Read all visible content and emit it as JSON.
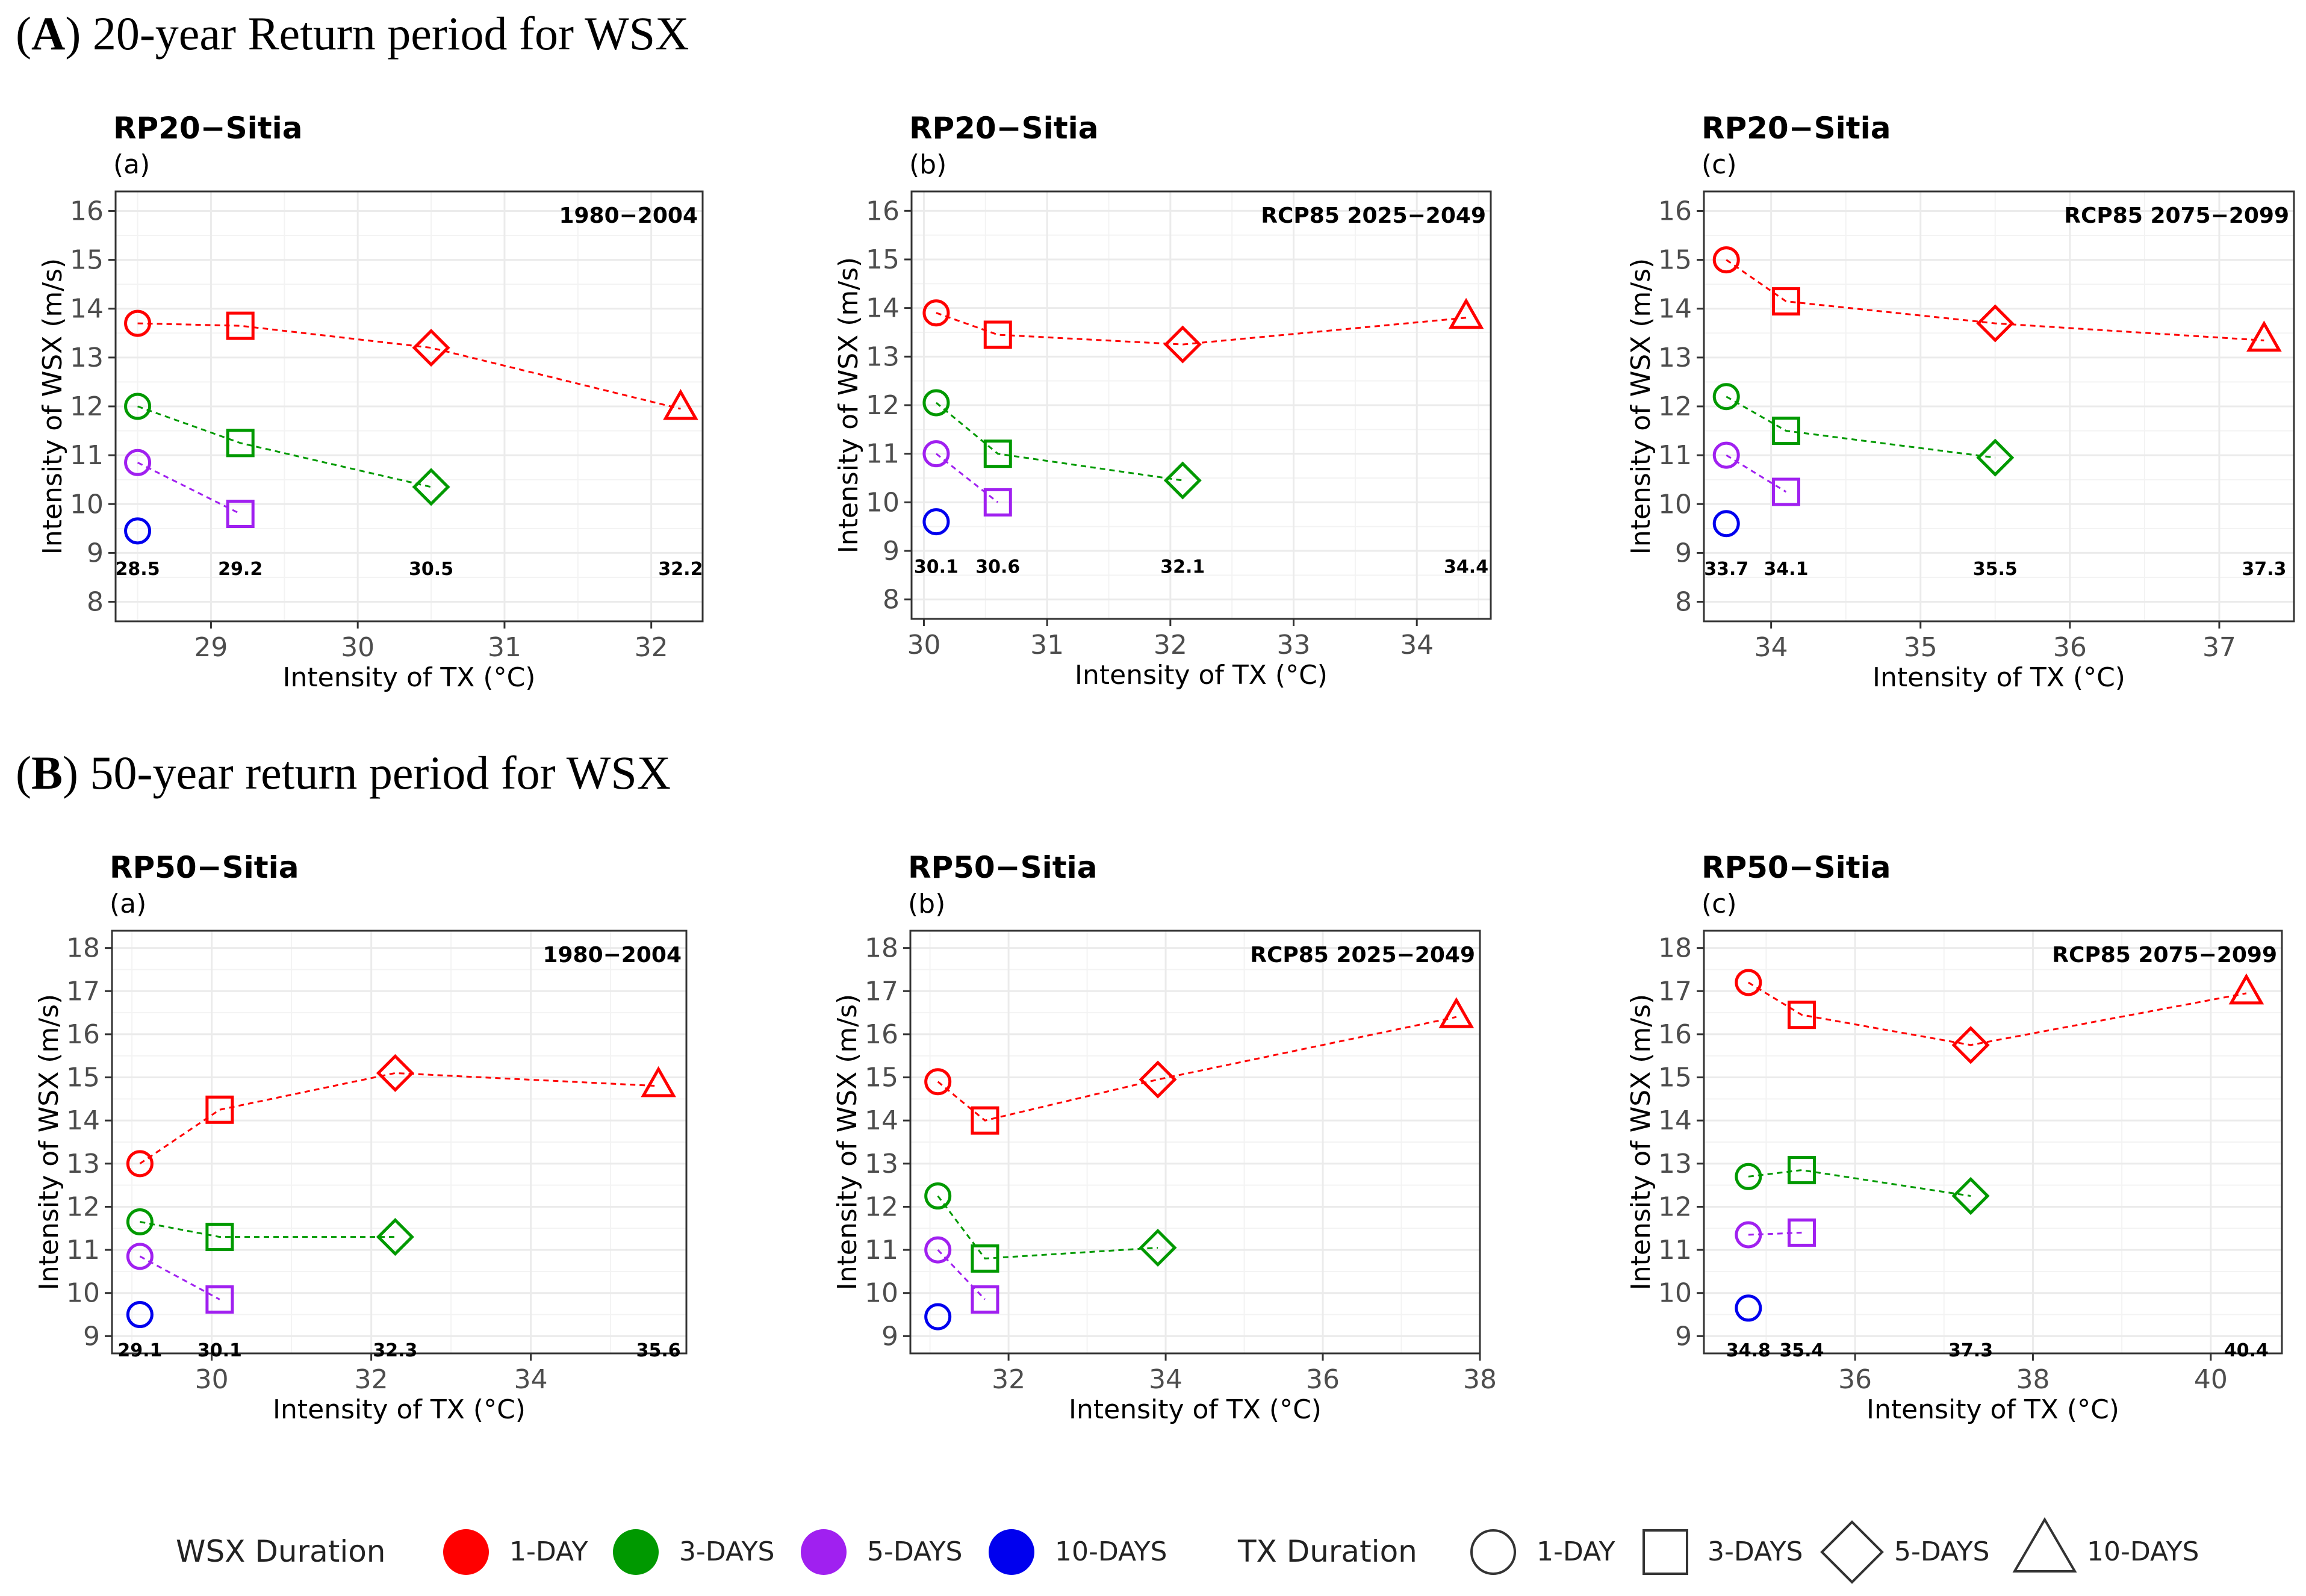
{
  "figure": {
    "section_A": {
      "letter": "A",
      "title": " 20-year Return period for WSX"
    },
    "section_B": {
      "letter": "B",
      "title": " 50-year return period for WSX"
    },
    "colors": {
      "1-DAY": "#ff0000",
      "3-DAYS": "#009900",
      "5-DAYS": "#a020f0",
      "10-DAYS": "#0000ee",
      "grid": "#ebebeb",
      "frame": "#333333"
    },
    "legend": {
      "wsx_title": "WSX Duration",
      "wsx_items": [
        {
          "label": "1-DAY",
          "color": "#ff0000"
        },
        {
          "label": "3-DAYS",
          "color": "#009900"
        },
        {
          "label": "5-DAYS",
          "color": "#a020f0"
        },
        {
          "label": "10-DAYS",
          "color": "#0000ee"
        }
      ],
      "tx_title": "TX Duration",
      "tx_items": [
        {
          "label": "1-DAY",
          "shape": "circle"
        },
        {
          "label": "3-DAYS",
          "shape": "square"
        },
        {
          "label": "5-DAYS",
          "shape": "diamond"
        },
        {
          "label": "10-DAYS",
          "shape": "triangle"
        }
      ]
    }
  },
  "chart_data": [
    {
      "type": "scatter",
      "title": "RP20−Sitia",
      "subtitle": "(a)",
      "period": "1980−2004",
      "xlabel": "Intensity of TX (°C)",
      "ylabel": "Intensity of WSX (m/s)",
      "xlim": [
        28.35,
        32.35
      ],
      "ylim": [
        7.6,
        16.4
      ],
      "xticks": [
        29,
        30,
        31,
        32
      ],
      "yticks": [
        8,
        9,
        10,
        11,
        12,
        13,
        14,
        15,
        16
      ],
      "tx_values": [
        28.5,
        29.2,
        30.5,
        32.2
      ],
      "tx_label_y": 8.7,
      "tx_labels": [
        "28.5",
        "29.2",
        "30.5",
        "32.2"
      ],
      "series": [
        {
          "name": "1-DAY",
          "x": [
            28.5,
            29.2,
            30.5,
            32.2
          ],
          "y": [
            13.7,
            13.65,
            13.2,
            11.95
          ]
        },
        {
          "name": "3-DAYS",
          "x": [
            28.5,
            29.2,
            30.5
          ],
          "y": [
            12.0,
            11.25,
            10.35
          ]
        },
        {
          "name": "5-DAYS",
          "x": [
            28.5,
            29.2
          ],
          "y": [
            10.85,
            9.8
          ]
        },
        {
          "name": "10-DAYS",
          "x": [
            28.5
          ],
          "y": [
            9.45
          ]
        }
      ]
    },
    {
      "type": "scatter",
      "title": "RP20−Sitia",
      "subtitle": "(b)",
      "period": "RCP85 2025−2049",
      "xlabel": "Intensity of TX (°C)",
      "ylabel": "Intensity of WSX (m/s)",
      "xlim": [
        29.9,
        34.6
      ],
      "ylim": [
        7.6,
        16.4
      ],
      "xticks": [
        30,
        31,
        32,
        33,
        34
      ],
      "yticks": [
        8,
        9,
        10,
        11,
        12,
        13,
        14,
        15,
        16
      ],
      "tx_values": [
        30.1,
        30.6,
        32.1,
        34.4
      ],
      "tx_label_y": 8.7,
      "tx_labels": [
        "30.1",
        "30.6",
        "32.1",
        "34.4"
      ],
      "series": [
        {
          "name": "1-DAY",
          "x": [
            30.1,
            30.6,
            32.1,
            34.4
          ],
          "y": [
            13.9,
            13.45,
            13.25,
            13.8
          ]
        },
        {
          "name": "3-DAYS",
          "x": [
            30.1,
            30.6,
            32.1
          ],
          "y": [
            12.05,
            11.0,
            10.45
          ]
        },
        {
          "name": "5-DAYS",
          "x": [
            30.1,
            30.6
          ],
          "y": [
            11.0,
            10.0
          ]
        },
        {
          "name": "10-DAYS",
          "x": [
            30.1
          ],
          "y": [
            9.6
          ]
        }
      ]
    },
    {
      "type": "scatter",
      "title": "RP20−Sitia",
      "subtitle": "(c)",
      "period": "RCP85 2075−2099",
      "xlabel": "Intensity of TX (°C)",
      "ylabel": "Intensity of WSX (m/s)",
      "xlim": [
        33.55,
        37.5
      ],
      "ylim": [
        7.6,
        16.4
      ],
      "xticks": [
        34,
        35,
        36,
        37
      ],
      "yticks": [
        8,
        9,
        10,
        11,
        12,
        13,
        14,
        15,
        16
      ],
      "tx_values": [
        33.7,
        34.1,
        35.5,
        37.3
      ],
      "tx_label_y": 8.7,
      "tx_labels": [
        "33.7",
        "34.1",
        "35.5",
        "37.3"
      ],
      "series": [
        {
          "name": "1-DAY",
          "x": [
            33.7,
            34.1,
            35.5,
            37.3
          ],
          "y": [
            15.0,
            14.15,
            13.7,
            13.35
          ]
        },
        {
          "name": "3-DAYS",
          "x": [
            33.7,
            34.1,
            35.5
          ],
          "y": [
            12.2,
            11.5,
            10.95
          ]
        },
        {
          "name": "5-DAYS",
          "x": [
            33.7,
            34.1
          ],
          "y": [
            11.0,
            10.25
          ]
        },
        {
          "name": "10-DAYS",
          "x": [
            33.7
          ],
          "y": [
            9.6
          ]
        }
      ]
    },
    {
      "type": "scatter",
      "title": "RP50−Sitia",
      "subtitle": "(a)",
      "period": "1980−2004",
      "xlabel": "Intensity of TX (°C)",
      "ylabel": "Intensity of WSX (m/s)",
      "xlim": [
        28.75,
        35.95
      ],
      "ylim": [
        8.6,
        18.4
      ],
      "xticks": [
        30,
        32,
        34
      ],
      "yticks": [
        9,
        10,
        11,
        12,
        13,
        14,
        15,
        16,
        17,
        18
      ],
      "tx_values": [
        29.1,
        30.1,
        32.3,
        35.6
      ],
      "tx_label_y": 8.7,
      "tx_labels": [
        "29.1",
        "30.1",
        "32.3",
        "35.6"
      ],
      "series": [
        {
          "name": "1-DAY",
          "x": [
            29.1,
            30.1,
            32.3,
            35.6
          ],
          "y": [
            13.0,
            14.25,
            15.1,
            14.8
          ]
        },
        {
          "name": "3-DAYS",
          "x": [
            29.1,
            30.1,
            32.3
          ],
          "y": [
            11.65,
            11.3,
            11.3
          ]
        },
        {
          "name": "5-DAYS",
          "x": [
            29.1,
            30.1
          ],
          "y": [
            10.85,
            9.85
          ]
        },
        {
          "name": "10-DAYS",
          "x": [
            29.1
          ],
          "y": [
            9.5
          ]
        }
      ]
    },
    {
      "type": "scatter",
      "title": "RP50−Sitia",
      "subtitle": "(b)",
      "period": "RCP85 2025−2049",
      "xlabel": "Intensity of TX (°C)",
      "ylabel": "Intensity of WSX (m/s)",
      "xlim": [
        30.75,
        38.0
      ],
      "ylim": [
        8.6,
        18.4
      ],
      "xticks": [
        32,
        34,
        36,
        38
      ],
      "yticks": [
        9,
        10,
        11,
        12,
        13,
        14,
        15,
        16,
        17,
        18
      ],
      "tx_values": [
        31.1,
        31.7,
        33.9,
        37.7
      ],
      "tx_labels": [],
      "series": [
        {
          "name": "1-DAY",
          "x": [
            31.1,
            31.7,
            33.9,
            37.7
          ],
          "y": [
            14.9,
            14.0,
            14.95,
            16.4
          ]
        },
        {
          "name": "3-DAYS",
          "x": [
            31.1,
            31.7,
            33.9
          ],
          "y": [
            12.25,
            10.8,
            11.05
          ]
        },
        {
          "name": "5-DAYS",
          "x": [
            31.1,
            31.7
          ],
          "y": [
            11.0,
            9.85
          ]
        },
        {
          "name": "10-DAYS",
          "x": [
            31.1
          ],
          "y": [
            9.45
          ]
        }
      ]
    },
    {
      "type": "scatter",
      "title": "RP50−Sitia",
      "subtitle": "(c)",
      "period": "RCP85 2075−2099",
      "xlabel": "Intensity of TX (°C)",
      "ylabel": "Intensity of WSX (m/s)",
      "xlim": [
        34.3,
        40.8
      ],
      "ylim": [
        8.6,
        18.4
      ],
      "xticks": [
        36,
        38,
        40
      ],
      "yticks": [
        9,
        10,
        11,
        12,
        13,
        14,
        15,
        16,
        17,
        18
      ],
      "tx_values": [
        34.8,
        35.4,
        37.3,
        40.4
      ],
      "tx_label_y": 8.7,
      "tx_labels": [
        "34.8",
        "35.4",
        "37.3",
        "40.4"
      ],
      "series": [
        {
          "name": "1-DAY",
          "x": [
            34.8,
            35.4,
            37.3,
            40.4
          ],
          "y": [
            17.2,
            16.45,
            15.75,
            16.95
          ]
        },
        {
          "name": "3-DAYS",
          "x": [
            34.8,
            35.4,
            37.3
          ],
          "y": [
            12.7,
            12.85,
            12.25
          ]
        },
        {
          "name": "5-DAYS",
          "x": [
            34.8,
            35.4
          ],
          "y": [
            11.35,
            11.4
          ]
        },
        {
          "name": "10-DAYS",
          "x": [
            34.8
          ],
          "y": [
            9.65
          ]
        }
      ]
    }
  ]
}
